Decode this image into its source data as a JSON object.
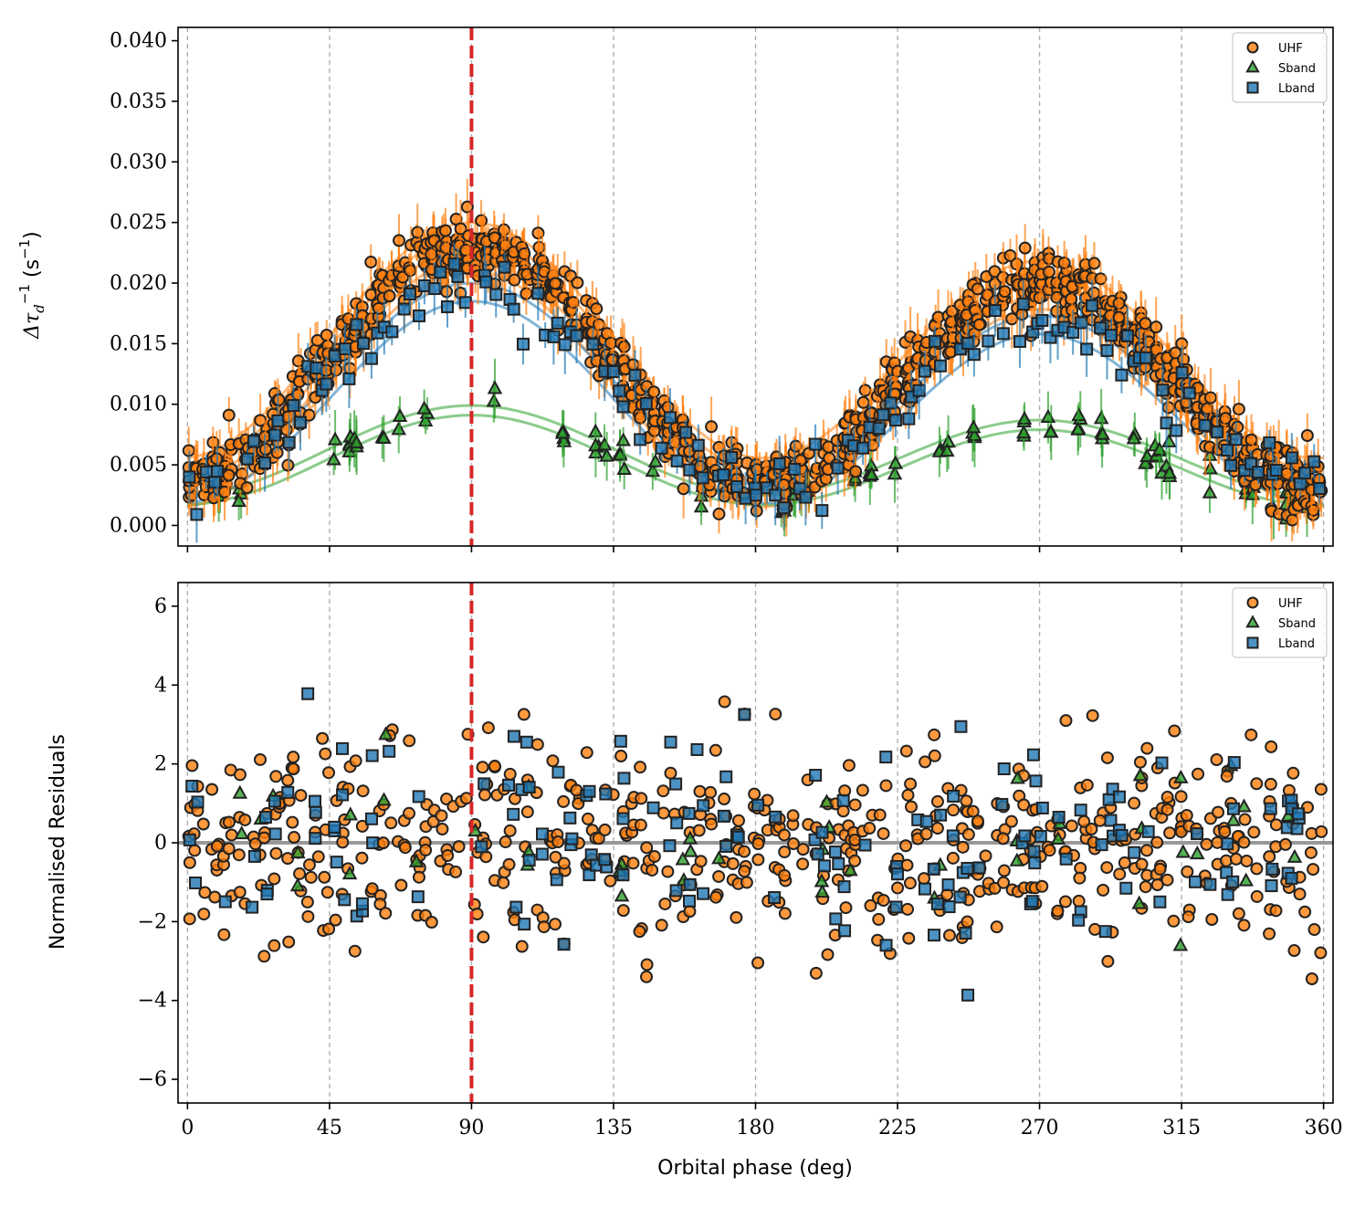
{
  "chart_data": [
    {
      "type": "scatter",
      "panel": "top",
      "ylabel_main": "Δτ",
      "ylabel_sub": "d",
      "ylabel_sup": "−1",
      "ylabel_unit": "(s",
      "ylabel_unit_sup": "−1",
      "ylabel_unit_close": ")",
      "xlim": [
        -3,
        363
      ],
      "ylim": [
        -0.0017,
        0.0411
      ],
      "yticks": [
        0.0,
        0.005,
        0.01,
        0.015,
        0.02,
        0.025,
        0.03,
        0.035,
        0.04
      ],
      "ytick_labels": [
        "0.000",
        "0.005",
        "0.010",
        "0.015",
        "0.020",
        "0.025",
        "0.030",
        "0.035",
        "0.040"
      ],
      "vlines_dashed": [
        0,
        45,
        90,
        135,
        180,
        225,
        270,
        315,
        360
      ],
      "vline_red": 90,
      "legend": [
        "UHF",
        "Sband",
        "Lband"
      ],
      "series": [
        {
          "name": "UHF",
          "marker": "circle",
          "color": "#ff7f0e",
          "model_amplitude": 0.0105,
          "model_offset": 0.0125,
          "spread": 0.0022
        },
        {
          "name": "Sband",
          "marker": "triangle",
          "color": "#2ca02c",
          "model_amplitude": 0.004,
          "model_offset": 0.0055,
          "spread": 0.0012
        },
        {
          "name": "Lband",
          "marker": "square",
          "color": "#1f77b4",
          "model_amplitude": 0.009,
          "model_offset": 0.011,
          "spread": 0.002
        }
      ]
    },
    {
      "type": "scatter",
      "panel": "bottom",
      "ylabel": "Normalised Residuals",
      "xlabel": "Orbital phase (deg)",
      "xlim": [
        -3,
        363
      ],
      "ylim": [
        -6.6,
        6.6
      ],
      "yticks": [
        -6,
        -4,
        -2,
        0,
        2,
        4,
        6
      ],
      "ytick_labels": [
        "−6",
        "−4",
        "−2",
        "0",
        "2",
        "4",
        "6"
      ],
      "xticks": [
        0,
        45,
        90,
        135,
        180,
        225,
        270,
        315,
        360
      ],
      "xtick_labels": [
        "0",
        "45",
        "90",
        "135",
        "180",
        "225",
        "270",
        "315",
        "360"
      ],
      "hline": 0,
      "vlines_dashed": [
        0,
        45,
        90,
        135,
        180,
        225,
        270,
        315,
        360
      ],
      "vline_red": 90,
      "legend": [
        "UHF",
        "Sband",
        "Lband"
      ],
      "series": [
        {
          "name": "UHF",
          "marker": "circle",
          "color": "#ff7f0e"
        },
        {
          "name": "Sband",
          "marker": "triangle",
          "color": "#2ca02c"
        },
        {
          "name": "Lband",
          "marker": "square",
          "color": "#1f77b4"
        }
      ]
    }
  ]
}
